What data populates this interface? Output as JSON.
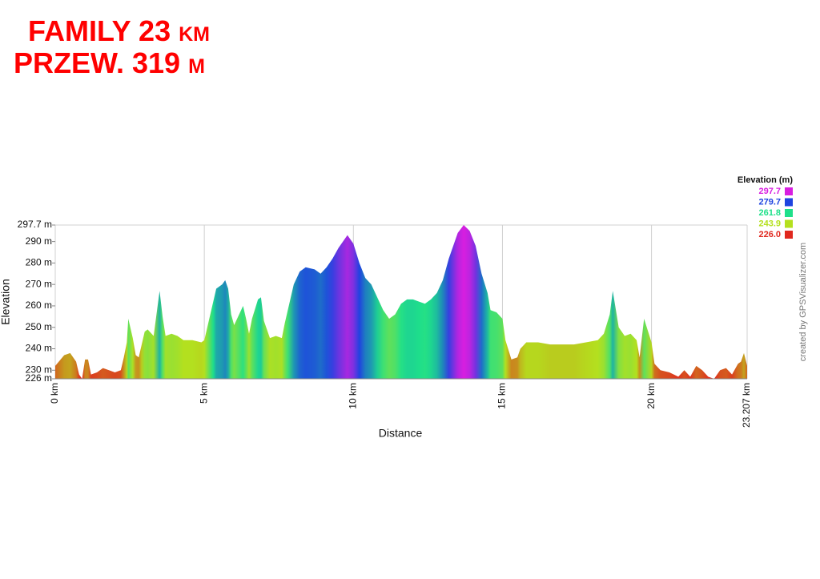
{
  "chart_data": {
    "type": "area",
    "title_lines": [
      "FAMILY 23 km",
      "PRZEW. 319 m"
    ],
    "x_label": "Distance",
    "y_label": "Elevation",
    "credit": "created by GPSVisualizer.com",
    "xlim": [
      0,
      23.207
    ],
    "ylim": [
      226,
      297.7
    ],
    "xticks": [
      {
        "value": 0,
        "label": "0 km"
      },
      {
        "value": 5,
        "label": "5 km"
      },
      {
        "value": 10,
        "label": "10 km"
      },
      {
        "value": 15,
        "label": "15 km"
      },
      {
        "value": 20,
        "label": "20 km"
      },
      {
        "value": 23.207,
        "label": "23.207 km"
      }
    ],
    "yticks": [
      {
        "value": 226,
        "label": "226 m"
      },
      {
        "value": 230,
        "label": "230 m"
      },
      {
        "value": 240,
        "label": "240 m"
      },
      {
        "value": 250,
        "label": "250 m"
      },
      {
        "value": 260,
        "label": "260 m"
      },
      {
        "value": 270,
        "label": "270 m"
      },
      {
        "value": 280,
        "label": "280 m"
      },
      {
        "value": 290,
        "label": "290 m"
      },
      {
        "value": 297.7,
        "label": "297.7 m"
      }
    ],
    "grid": "x",
    "legend": {
      "title": "Elevation (m)",
      "position": "right-top",
      "entries": [
        {
          "value": 297.7,
          "label": "297.7",
          "color": "#d81ee0"
        },
        {
          "value": 279.7,
          "label": "279.7",
          "color": "#1e44e0"
        },
        {
          "value": 261.8,
          "label": "261.8",
          "color": "#1ee08a"
        },
        {
          "value": 243.9,
          "label": "243.9",
          "color": "#b4e01e"
        },
        {
          "value": 226,
          "label": "226.0",
          "color": "#e0281e"
        }
      ]
    },
    "x": [
      0,
      0.3,
      0.5,
      0.7,
      0.8,
      0.9,
      1.0,
      1.1,
      1.2,
      1.4,
      1.6,
      1.8,
      2.0,
      2.2,
      2.3,
      2.4,
      2.45,
      2.6,
      2.7,
      2.8,
      2.9,
      3.0,
      3.1,
      3.3,
      3.5,
      3.6,
      3.7,
      3.9,
      4.1,
      4.3,
      4.6,
      4.9,
      5.0,
      5.1,
      5.3,
      5.4,
      5.6,
      5.7,
      5.8,
      5.9,
      6.0,
      6.2,
      6.3,
      6.4,
      6.5,
      6.6,
      6.8,
      6.9,
      7.0,
      7.2,
      7.4,
      7.6,
      7.7,
      7.8,
      8.0,
      8.2,
      8.4,
      8.7,
      8.9,
      9.1,
      9.3,
      9.5,
      9.8,
      10.0,
      10.2,
      10.4,
      10.6,
      10.8,
      11.0,
      11.2,
      11.4,
      11.6,
      11.8,
      12.0,
      12.2,
      12.4,
      12.6,
      12.8,
      13.0,
      13.2,
      13.5,
      13.7,
      13.9,
      14.1,
      14.3,
      14.5,
      14.6,
      14.8,
      15.0,
      15.1,
      15.3,
      15.5,
      15.6,
      15.8,
      16.2,
      16.6,
      17.0,
      17.4,
      17.8,
      18.2,
      18.4,
      18.6,
      18.7,
      18.9,
      19.1,
      19.3,
      19.5,
      19.6,
      19.75,
      20.0,
      20.1,
      20.3,
      20.6,
      20.9,
      21.1,
      21.3,
      21.5,
      21.7,
      21.9,
      22.1,
      22.3,
      22.5,
      22.7,
      22.9,
      23.0,
      23.1,
      23.207
    ],
    "values": [
      232,
      237,
      238,
      234,
      228,
      226,
      235,
      235,
      228,
      229,
      231,
      230,
      229,
      230,
      236,
      243,
      254,
      245,
      237,
      236,
      242,
      248,
      249,
      246,
      267,
      255,
      246,
      247,
      246,
      244,
      244,
      243,
      244,
      250,
      262,
      268,
      270,
      272,
      268,
      256,
      251,
      257,
      260,
      254,
      247,
      254,
      263,
      264,
      253,
      245,
      246,
      245,
      252,
      258,
      270,
      276,
      278,
      277,
      275,
      278,
      282,
      287,
      293,
      289,
      280,
      273,
      270,
      264,
      258,
      254,
      256,
      261,
      263,
      263,
      262,
      261,
      263,
      266,
      272,
      282,
      294,
      297.7,
      295,
      288,
      275,
      266,
      258,
      257,
      254,
      244,
      235,
      236,
      240,
      243,
      243,
      242,
      242,
      242,
      243,
      244,
      247,
      256,
      267,
      250,
      246,
      247,
      244,
      236,
      254,
      243,
      233,
      230,
      229,
      227,
      230,
      227,
      232,
      230,
      227,
      226,
      230,
      231,
      228,
      233,
      234,
      238,
      232
    ]
  }
}
